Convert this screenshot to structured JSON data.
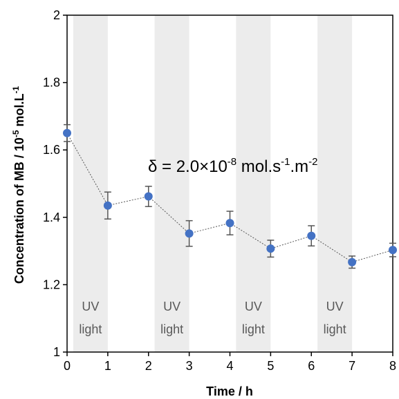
{
  "chart_data": {
    "type": "scatter",
    "title": "",
    "xlabel": "Time / h",
    "ylabel_parts": [
      "Concentration of MB / 10",
      "-5",
      " mol.L",
      "-1"
    ],
    "xlim": [
      0,
      8
    ],
    "ylim": [
      1,
      2
    ],
    "x_ticks": [
      "0",
      "1",
      "2",
      "3",
      "4",
      "5",
      "6",
      "7",
      "8"
    ],
    "y_ticks": [
      "1",
      "1.2",
      "1.4",
      "1.6",
      "1.8",
      "2"
    ],
    "grid": false,
    "legend": "none",
    "series": [
      {
        "x": [
          0,
          1,
          2,
          3,
          4,
          5,
          6,
          7,
          8
        ],
        "y": [
          1.65,
          1.435,
          1.462,
          1.352,
          1.383,
          1.307,
          1.345,
          1.267,
          1.303
        ],
        "error": [
          0.025,
          0.04,
          0.03,
          0.038,
          0.035,
          0.025,
          0.03,
          0.018,
          0.02
        ],
        "color": "#4472C4"
      }
    ],
    "bands": [
      {
        "x_start": 0.15,
        "x_end": 1.0,
        "label_line1": "UV",
        "label_line2": "light"
      },
      {
        "x_start": 2.15,
        "x_end": 3.0,
        "label_line1": "UV",
        "label_line2": "light"
      },
      {
        "x_start": 4.15,
        "x_end": 5.0,
        "label_line1": "UV",
        "label_line2": "light"
      },
      {
        "x_start": 6.15,
        "x_end": 7.0,
        "label_line1": "UV",
        "label_line2": "light"
      }
    ],
    "band_color": "#ececec",
    "annotation_parts": [
      "δ = 2.0×10",
      "-8",
      " mol.s",
      "-1",
      ".m",
      "-2"
    ]
  }
}
